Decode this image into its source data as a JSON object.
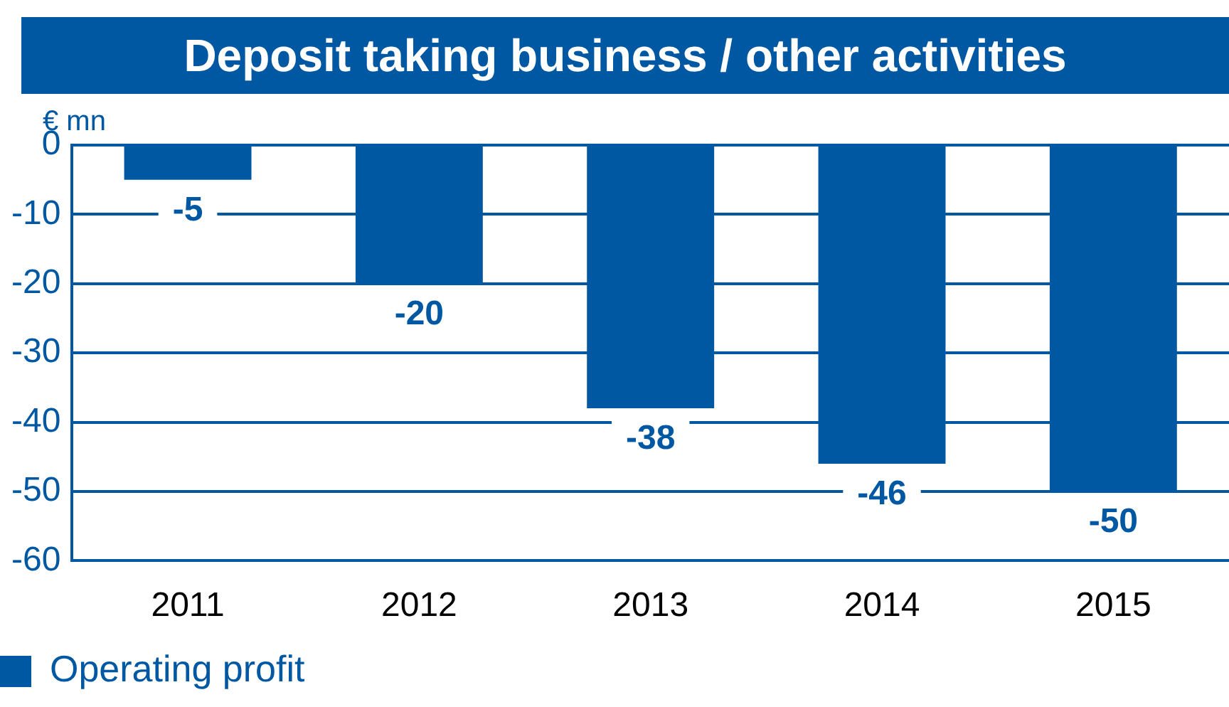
{
  "chart_data": {
    "type": "bar",
    "title": "Deposit taking business / other activities",
    "ylabel": "€ mn",
    "categories": [
      "2011",
      "2012",
      "2013",
      "2014",
      "2015"
    ],
    "series": [
      {
        "name": "Operating profit",
        "color": "#0058a3",
        "values": [
          -5,
          -20,
          -38,
          -46,
          -50
        ]
      }
    ],
    "ylim": [
      -60,
      0
    ],
    "yticks": [
      -60,
      -50,
      -40,
      -30,
      -20,
      -10,
      0
    ],
    "grid": "y",
    "legend": "bottom left",
    "data_labels": true
  }
}
